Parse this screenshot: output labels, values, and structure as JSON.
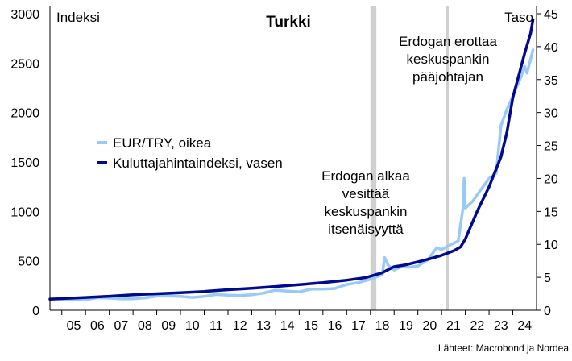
{
  "chart_data": {
    "type": "line",
    "title": "Turkki",
    "left_axis": {
      "label": "Indeksi",
      "range": [
        0,
        3000
      ],
      "ticks": [
        "0",
        "500",
        "1000",
        "1500",
        "2000",
        "2500",
        "3000"
      ]
    },
    "right_axis": {
      "label": "Taso",
      "range": [
        0,
        45
      ],
      "ticks": [
        "0",
        "5",
        "10",
        "15",
        "20",
        "25",
        "30",
        "35",
        "40",
        "45"
      ]
    },
    "x_axis": {
      "range": [
        2004.5,
        2025.0
      ],
      "ticks": [
        "05",
        "06",
        "07",
        "08",
        "09",
        "10",
        "11",
        "12",
        "13",
        "14",
        "15",
        "16",
        "17",
        "18",
        "19",
        "20",
        "21",
        "22",
        "23",
        "24"
      ]
    },
    "grid": false,
    "legend_position": "left-middle",
    "series": [
      {
        "name": "EUR/TRY, oikea",
        "axis": "right",
        "color": "#99c9f5",
        "points": [
          [
            2004.5,
            1.75
          ],
          [
            2005.0,
            1.7
          ],
          [
            2005.5,
            1.63
          ],
          [
            2006.0,
            1.6
          ],
          [
            2006.5,
            1.9
          ],
          [
            2007.0,
            1.85
          ],
          [
            2007.5,
            1.72
          ],
          [
            2008.0,
            1.75
          ],
          [
            2008.5,
            1.88
          ],
          [
            2009.0,
            2.15
          ],
          [
            2009.5,
            2.15
          ],
          [
            2010.0,
            2.1
          ],
          [
            2010.5,
            1.95
          ],
          [
            2011.0,
            2.1
          ],
          [
            2011.5,
            2.4
          ],
          [
            2012.0,
            2.3
          ],
          [
            2012.5,
            2.25
          ],
          [
            2013.0,
            2.35
          ],
          [
            2013.5,
            2.6
          ],
          [
            2014.0,
            3.05
          ],
          [
            2014.5,
            2.9
          ],
          [
            2015.0,
            2.8
          ],
          [
            2015.5,
            3.2
          ],
          [
            2016.0,
            3.2
          ],
          [
            2016.5,
            3.3
          ],
          [
            2017.0,
            3.9
          ],
          [
            2017.5,
            4.2
          ],
          [
            2018.0,
            4.7
          ],
          [
            2018.5,
            5.4
          ],
          [
            2018.6,
            8.0
          ],
          [
            2018.75,
            6.8
          ],
          [
            2019.0,
            6.1
          ],
          [
            2019.3,
            6.6
          ],
          [
            2019.6,
            6.5
          ],
          [
            2020.0,
            6.7
          ],
          [
            2020.4,
            7.6
          ],
          [
            2020.8,
            9.5
          ],
          [
            2021.0,
            9.2
          ],
          [
            2021.3,
            9.8
          ],
          [
            2021.7,
            10.5
          ],
          [
            2021.9,
            15.5
          ],
          [
            2021.95,
            20.0
          ],
          [
            2022.0,
            15.5
          ],
          [
            2022.3,
            16.5
          ],
          [
            2022.7,
            18.5
          ],
          [
            2023.0,
            20.0
          ],
          [
            2023.3,
            20.8
          ],
          [
            2023.5,
            28.0
          ],
          [
            2023.75,
            30.5
          ],
          [
            2024.0,
            32.5
          ],
          [
            2024.3,
            35.0
          ],
          [
            2024.5,
            37.0
          ],
          [
            2024.6,
            36.0
          ],
          [
            2024.85,
            39.5
          ]
        ]
      },
      {
        "name": "Kuluttajahintaindeksi, vasen",
        "axis": "left",
        "color": "#000a8c",
        "points": [
          [
            2004.5,
            112
          ],
          [
            2005.0,
            118
          ],
          [
            2006.0,
            130
          ],
          [
            2007.0,
            142
          ],
          [
            2008.0,
            157
          ],
          [
            2009.0,
            167
          ],
          [
            2010.0,
            178
          ],
          [
            2011.0,
            190
          ],
          [
            2012.0,
            208
          ],
          [
            2013.0,
            222
          ],
          [
            2014.0,
            240
          ],
          [
            2015.0,
            259
          ],
          [
            2016.0,
            279
          ],
          [
            2017.0,
            304
          ],
          [
            2017.8,
            330
          ],
          [
            2018.5,
            380
          ],
          [
            2018.9,
            430
          ],
          [
            2019.0,
            440
          ],
          [
            2019.5,
            460
          ],
          [
            2020.0,
            490
          ],
          [
            2020.5,
            520
          ],
          [
            2021.0,
            555
          ],
          [
            2021.5,
            600
          ],
          [
            2021.8,
            640
          ],
          [
            2022.0,
            720
          ],
          [
            2022.5,
            1000
          ],
          [
            2023.0,
            1250
          ],
          [
            2023.5,
            1550
          ],
          [
            2023.75,
            1800
          ],
          [
            2024.0,
            2150
          ],
          [
            2024.5,
            2600
          ],
          [
            2024.75,
            2800
          ],
          [
            2024.85,
            2940
          ]
        ]
      }
    ],
    "events": [
      {
        "x": 2018.0,
        "x_end": 2018.25,
        "style": "band",
        "label_lines": [
          "Erdogan alkaa",
          "vesittää",
          "keskuspankin",
          "itsenäisyyttä"
        ]
      },
      {
        "x": 2021.25,
        "style": "line",
        "label_lines": [
          "Erdogan erottaa",
          "keskuspankin",
          "pääjohtajan"
        ]
      }
    ]
  },
  "source_note": "Lähteet: Macrobond ja Nordea"
}
